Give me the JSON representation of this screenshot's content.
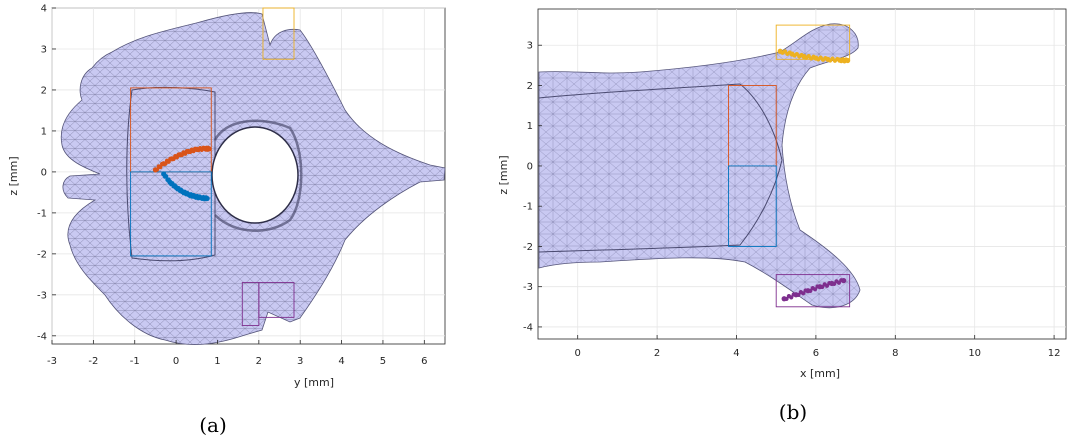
{
  "panels": [
    {
      "caption": "(a)",
      "xlabel": "y [mm]",
      "ylabel": "z [mm]",
      "xticks": [
        "-3",
        "-2",
        "-1",
        "0",
        "1",
        "2",
        "3",
        "4",
        "5",
        "6"
      ],
      "yticks": [
        "4",
        "3",
        "2",
        "1",
        "0",
        "-1",
        "-2",
        "-3",
        "-4"
      ]
    },
    {
      "caption": "(b)",
      "xlabel": "x [mm]",
      "ylabel": "z [mm]",
      "xticks": [
        "0",
        "2",
        "4",
        "6",
        "8",
        "10",
        "12"
      ],
      "yticks": [
        "3",
        "2",
        "1",
        "0",
        "-1",
        "-2",
        "-3",
        "-4"
      ]
    }
  ],
  "colors": {
    "mesh_fill": "#c9c9f2",
    "mesh_edge": "#55557a",
    "orange_points": "#d95319",
    "blue_points": "#0072bd",
    "yellow_points": "#edb120",
    "purple_points": "#7e2f8e",
    "red_box": "#d95319",
    "blue_box": "#0072bd",
    "yellow_box": "#edb120",
    "purple_box": "#7e2f8e"
  },
  "chart_data": [
    {
      "type": "scatter",
      "panel": "(a)",
      "xlim": [
        -3,
        6.5
      ],
      "ylim": [
        -4.2,
        4
      ],
      "grid": true,
      "series": [
        {
          "color": "orange",
          "x": [
            -0.5,
            -0.3,
            -0.1,
            0.1,
            0.3,
            0.5,
            0.7,
            0.8
          ],
          "y": [
            0.05,
            0.2,
            0.32,
            0.42,
            0.5,
            0.55,
            0.57,
            0.56
          ]
        },
        {
          "color": "blue",
          "x": [
            -0.3,
            -0.15,
            0,
            0.15,
            0.3,
            0.45,
            0.6,
            0.75
          ],
          "y": [
            -0.05,
            -0.25,
            -0.38,
            -0.48,
            -0.55,
            -0.6,
            -0.63,
            -0.65
          ]
        }
      ],
      "boxes": [
        {
          "color": "red",
          "x": [
            -1.1,
            0.85
          ],
          "y": [
            0,
            2.05
          ]
        },
        {
          "color": "blue",
          "x": [
            -1.1,
            0.85
          ],
          "y": [
            -2.05,
            0
          ]
        },
        {
          "color": "yellow",
          "x": [
            2.1,
            2.85
          ],
          "y": [
            2.75,
            4
          ]
        },
        {
          "color": "purple",
          "x": [
            1.6,
            2.0
          ],
          "y": [
            -3.75,
            -2.7
          ]
        },
        {
          "color": "purple",
          "x": [
            2.0,
            2.85
          ],
          "y": [
            -3.55,
            -2.7
          ]
        }
      ]
    },
    {
      "type": "scatter",
      "panel": "(b)",
      "xlim": [
        -1,
        12.3
      ],
      "ylim": [
        -4.3,
        3.9
      ],
      "grid": true,
      "series": [
        {
          "color": "yellow",
          "x": [
            5.1,
            5.4,
            5.7,
            6.0,
            6.3,
            6.6,
            6.8
          ],
          "y": [
            2.85,
            2.78,
            2.72,
            2.68,
            2.65,
            2.63,
            2.62
          ]
        },
        {
          "color": "purple",
          "x": [
            5.2,
            5.5,
            5.8,
            6.1,
            6.4,
            6.7
          ],
          "y": [
            -3.3,
            -3.2,
            -3.1,
            -3.0,
            -2.92,
            -2.85
          ]
        }
      ],
      "boxes": [
        {
          "color": "yellow",
          "x": [
            5.0,
            6.85
          ],
          "y": [
            2.65,
            3.5
          ]
        },
        {
          "color": "red",
          "x": [
            3.8,
            5.0
          ],
          "y": [
            0,
            2.0
          ]
        },
        {
          "color": "blue",
          "x": [
            3.8,
            5.0
          ],
          "y": [
            -2.0,
            0
          ]
        },
        {
          "color": "purple",
          "x": [
            5.0,
            6.85
          ],
          "y": [
            -3.5,
            -2.7
          ]
        }
      ]
    }
  ]
}
